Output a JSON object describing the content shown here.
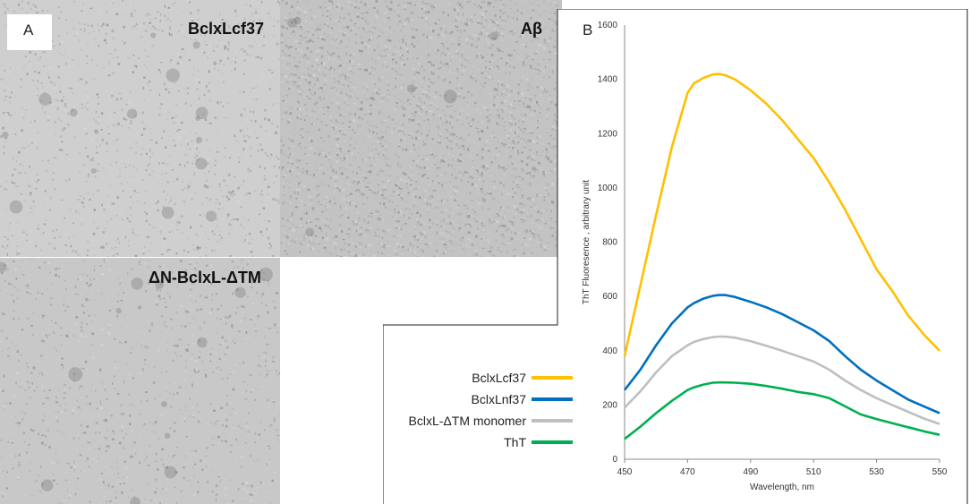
{
  "panel_a": {
    "label": "A",
    "images": [
      {
        "name": "BclxLcf37",
        "tone": "#cfcfcf"
      },
      {
        "name": "Aβ",
        "tone": "#c3c3c3"
      },
      {
        "name": "ΔN-BclxL-ΔTM",
        "tone": "#c8c8c8"
      }
    ]
  },
  "panel_b": {
    "label": "B"
  },
  "chart_data": {
    "type": "line",
    "title": "",
    "xlabel": "Wavelength, nm",
    "ylabel": "ThT Fluoresence , arbitrary unit",
    "xlim": [
      450,
      550
    ],
    "ylim": [
      0,
      1600
    ],
    "x_ticks": [
      450,
      470,
      490,
      510,
      530,
      550
    ],
    "y_ticks": [
      0,
      200,
      400,
      600,
      800,
      1000,
      1200,
      1400,
      1600
    ],
    "grid": false,
    "legend_position": "left-outside",
    "x": [
      450,
      455,
      460,
      465,
      470,
      472,
      475,
      478,
      480,
      482,
      485,
      490,
      495,
      500,
      505,
      510,
      515,
      520,
      525,
      530,
      535,
      540,
      545,
      550
    ],
    "series": [
      {
        "name": "BclxLcf37",
        "color": "#FFC000",
        "values": [
          380,
          640,
          900,
          1150,
          1350,
          1385,
          1405,
          1418,
          1420,
          1415,
          1400,
          1360,
          1310,
          1250,
          1180,
          1110,
          1020,
          920,
          810,
          700,
          620,
          530,
          460,
          400
        ]
      },
      {
        "name": "BclxLnf37",
        "color": "#0070C0",
        "values": [
          255,
          330,
          420,
          500,
          560,
          575,
          592,
          602,
          605,
          605,
          598,
          580,
          560,
          535,
          505,
          475,
          435,
          380,
          330,
          290,
          255,
          220,
          195,
          170
        ]
      },
      {
        "name": "BclxL-ΔTM monomer",
        "color": "#BFBFBF",
        "values": [
          190,
          250,
          320,
          380,
          420,
          432,
          443,
          450,
          452,
          452,
          448,
          435,
          418,
          400,
          380,
          360,
          330,
          290,
          255,
          225,
          200,
          175,
          150,
          130
        ]
      },
      {
        "name": "ThT",
        "color": "#00B050",
        "values": [
          75,
          120,
          170,
          215,
          255,
          265,
          275,
          282,
          283,
          283,
          282,
          278,
          270,
          260,
          248,
          240,
          225,
          195,
          165,
          148,
          133,
          118,
          103,
          90
        ]
      }
    ]
  }
}
